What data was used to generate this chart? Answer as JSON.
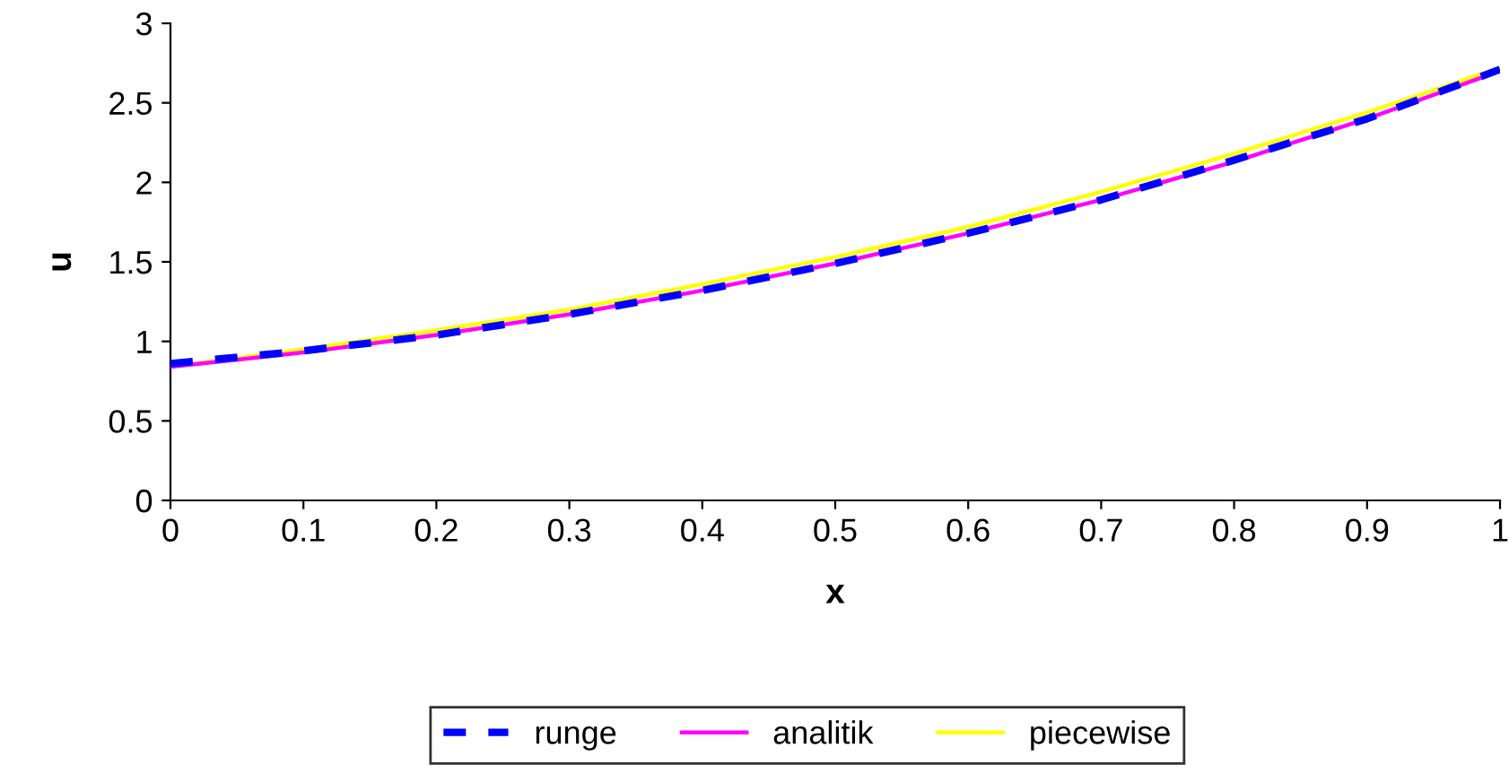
{
  "chart_data": {
    "type": "line",
    "xlabel": "x",
    "ylabel": "u",
    "x": [
      0,
      0.1,
      0.2,
      0.3,
      0.4,
      0.5,
      0.6,
      0.7,
      0.8,
      0.9,
      1
    ],
    "series": [
      {
        "name": "runge",
        "color": "#0000ff",
        "line_style": "dashed",
        "values": [
          0.86,
          0.94,
          1.04,
          1.17,
          1.32,
          1.49,
          1.68,
          1.89,
          2.14,
          2.4,
          2.71
        ]
      },
      {
        "name": "analitik",
        "color": "#ff00ff",
        "line_style": "solid",
        "values": [
          0.84,
          0.93,
          1.04,
          1.17,
          1.32,
          1.49,
          1.68,
          1.89,
          2.13,
          2.4,
          2.7
        ]
      },
      {
        "name": "piecewise",
        "color": "#ffff00",
        "line_style": "solid",
        "values": [
          0.84,
          0.95,
          1.07,
          1.2,
          1.36,
          1.53,
          1.72,
          1.94,
          2.18,
          2.44,
          2.72
        ]
      }
    ],
    "xlim": [
      0,
      1
    ],
    "ylim": [
      0,
      3
    ],
    "xticks": [
      0,
      0.1,
      0.2,
      0.3,
      0.4,
      0.5,
      0.6,
      0.7,
      0.8,
      0.9,
      1
    ],
    "yticks": [
      0,
      0.5,
      1,
      1.5,
      2,
      2.5,
      3
    ],
    "grid": false,
    "legend": "bottom",
    "marker": "none"
  }
}
